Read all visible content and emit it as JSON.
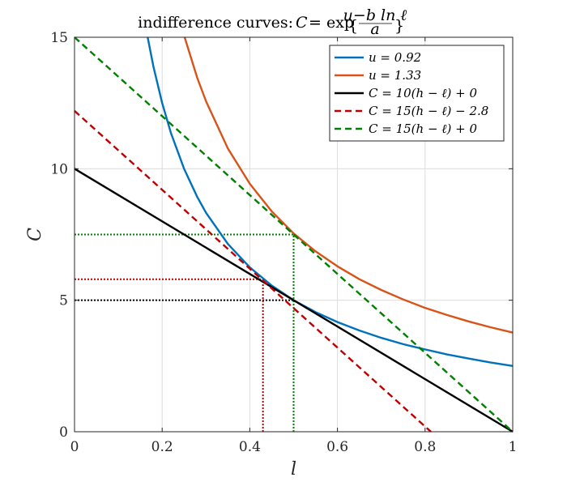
{
  "chart_data": {
    "type": "line",
    "title": "indifference curves: C = exp{(u − b ln ℓ)/a}",
    "xlabel": "l",
    "ylabel": "C",
    "xlim": [
      0,
      1
    ],
    "ylim": [
      0,
      15
    ],
    "xticks": [
      0,
      0.2,
      0.4,
      0.6,
      0.8,
      1
    ],
    "yticks": [
      0,
      5,
      10,
      15
    ],
    "xtick_labels": [
      "0",
      "0.2",
      "0.4",
      "0.6",
      "0.8",
      "1"
    ],
    "ytick_labels": [
      "0",
      "5",
      "10",
      "15"
    ],
    "grid": true,
    "legend_position": "top-right",
    "series": [
      {
        "name": "u = 0.92",
        "color": "#0072BD",
        "style": "solid",
        "x": [
          0.1669,
          0.18,
          0.2,
          0.22,
          0.25,
          0.28,
          0.3,
          0.35,
          0.4,
          0.45,
          0.5,
          0.55,
          0.6,
          0.65,
          0.7,
          0.75,
          0.8,
          0.85,
          0.9,
          0.95,
          1.0
        ],
        "y": [
          15.0,
          13.89,
          12.5,
          11.36,
          10.0,
          8.93,
          8.33,
          7.14,
          6.25,
          5.56,
          5.0,
          4.55,
          4.17,
          3.85,
          3.57,
          3.33,
          3.13,
          2.94,
          2.78,
          2.63,
          2.5
        ]
      },
      {
        "name": "u = 1.33",
        "color": "#D95319",
        "style": "solid",
        "x": [
          0.2513,
          0.28,
          0.3,
          0.35,
          0.4,
          0.45,
          0.5,
          0.55,
          0.6,
          0.65,
          0.7,
          0.75,
          0.8,
          0.85,
          0.9,
          0.95,
          1.0
        ],
        "y": [
          15.0,
          13.46,
          12.57,
          10.77,
          9.43,
          8.38,
          7.54,
          6.86,
          6.29,
          5.8,
          5.39,
          5.03,
          4.71,
          4.44,
          4.19,
          3.97,
          3.77
        ]
      },
      {
        "name": "C = 10(h − ℓ) + 0",
        "color": "#000000",
        "style": "solid",
        "x": [
          0,
          1
        ],
        "y": [
          10,
          0
        ]
      },
      {
        "name": "C = 15(h − ℓ) − 2.8",
        "color": "#C00000",
        "style": "dashed",
        "x": [
          0,
          0.8133
        ],
        "y": [
          12.2,
          0
        ]
      },
      {
        "name": "C = 15(h − ℓ) + 0",
        "color": "#008000",
        "style": "dashed",
        "x": [
          0,
          1
        ],
        "y": [
          15,
          0
        ]
      }
    ],
    "reference_lines": [
      {
        "color": "#000000",
        "x0": 0,
        "x1": 0.5,
        "y": 5.0
      },
      {
        "color": "#C00000",
        "x0": 0,
        "x1": 0.43,
        "y": 5.8
      },
      {
        "color": "#C00000",
        "x": 0.43,
        "y0": 0,
        "y1": 5.8
      },
      {
        "color": "#008000",
        "x0": 0,
        "x1": 0.5,
        "y": 7.5
      },
      {
        "color": "#008000",
        "x": 0.5,
        "y0": 0,
        "y1": 7.5
      }
    ]
  }
}
